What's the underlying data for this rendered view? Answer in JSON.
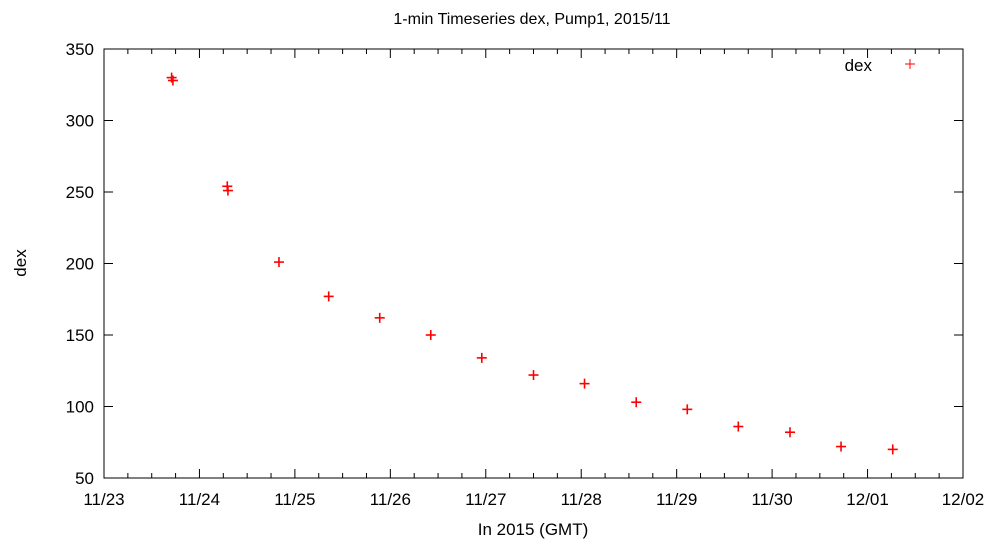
{
  "chart_data": {
    "type": "scatter",
    "title": "1-min Timeseries dex, Pump1, 2015/11",
    "xlabel": "In 2015 (GMT)",
    "ylabel": "dex",
    "xlim": [
      "2015-11-23T00:00",
      "2015-12-02T00:00"
    ],
    "ylim": [
      50,
      350
    ],
    "x_tick_labels": [
      "11/23",
      "11/24",
      "11/25",
      "11/26",
      "11/27",
      "11/28",
      "11/29",
      "11/30",
      "12/01",
      "12/02"
    ],
    "y_ticks": [
      50,
      100,
      150,
      200,
      250,
      300,
      350
    ],
    "grid": false,
    "legend": {
      "position": "top-right",
      "entries": [
        "dex"
      ]
    },
    "colors": {
      "series": "#ff0000",
      "axes": "#000000"
    },
    "series": [
      {
        "name": "dex",
        "marker": "plus",
        "points": [
          {
            "x": "2015-11-23T17:00",
            "y": 330
          },
          {
            "x": "2015-11-23T17:20",
            "y": 328
          },
          {
            "x": "2015-11-24T07:00",
            "y": 254
          },
          {
            "x": "2015-11-24T07:10",
            "y": 251
          },
          {
            "x": "2015-11-24T20:00",
            "y": 201
          },
          {
            "x": "2015-11-25T08:30",
            "y": 177
          },
          {
            "x": "2015-11-25T21:20",
            "y": 162
          },
          {
            "x": "2015-11-26T10:10",
            "y": 150
          },
          {
            "x": "2015-11-26T23:00",
            "y": 134
          },
          {
            "x": "2015-11-27T12:00",
            "y": 122
          },
          {
            "x": "2015-11-28T00:50",
            "y": 116
          },
          {
            "x": "2015-11-28T13:50",
            "y": 103
          },
          {
            "x": "2015-11-29T02:40",
            "y": 98
          },
          {
            "x": "2015-11-29T15:30",
            "y": 86
          },
          {
            "x": "2015-11-30T04:30",
            "y": 82
          },
          {
            "x": "2015-11-30T17:20",
            "y": 72
          },
          {
            "x": "2015-12-01T06:20",
            "y": 70
          }
        ]
      }
    ]
  }
}
